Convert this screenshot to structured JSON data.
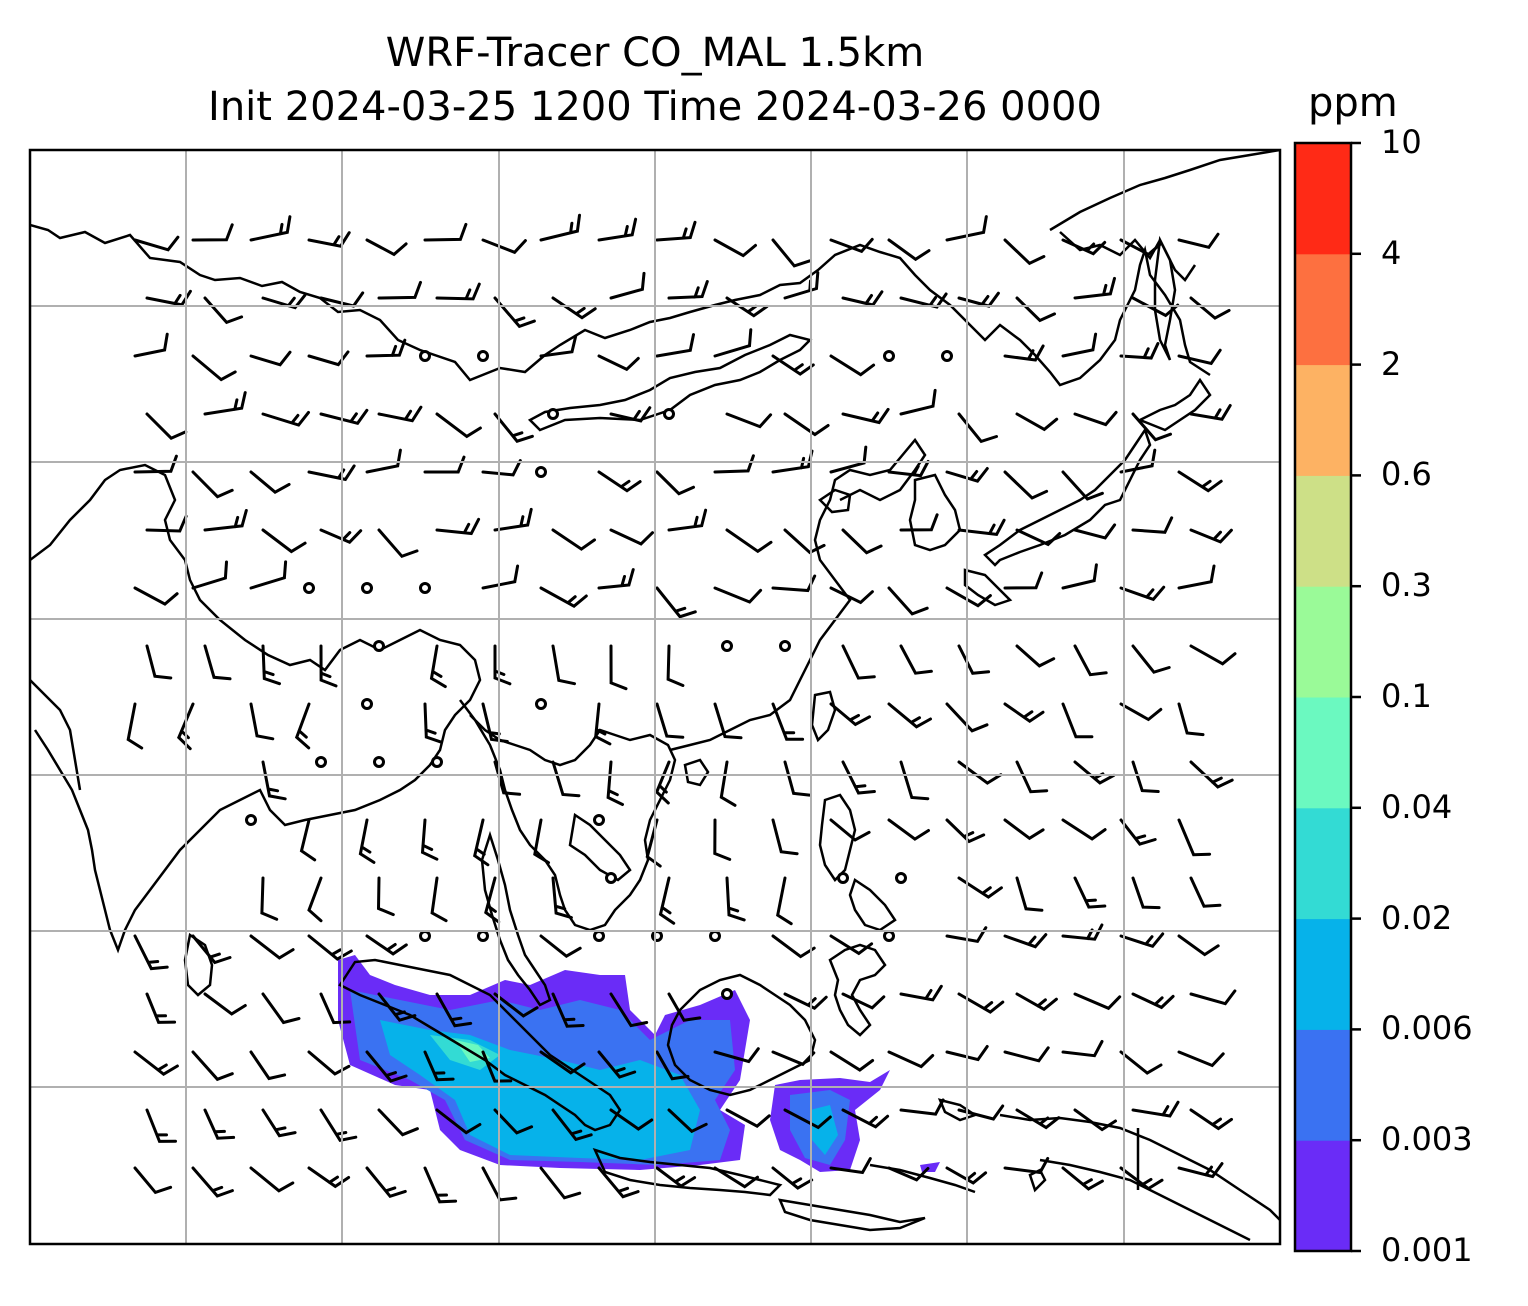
{
  "title": {
    "line1": "WRF-Tracer CO_MAL 1.5km",
    "line2": "Init 2024-03-25 1200 Time 2024-03-26 0000"
  },
  "colorbar": {
    "unit": "ppm",
    "ticks": [
      "0.001",
      "0.003",
      "0.006",
      "0.02",
      "0.04",
      "0.1",
      "0.3",
      "0.6",
      "2",
      "4",
      "10"
    ],
    "colors": [
      "#6a2cf7",
      "#3a72f2",
      "#06b2ea",
      "#33dbd4",
      "#6bf9c0",
      "#9afa98",
      "#cde087",
      "#fdb263",
      "#fd7040",
      "#ff2a16"
    ]
  },
  "map": {
    "coastline_color": "#000000",
    "grid_color": "#b0b0b0",
    "tracer_colors": {
      "lowest": "#6a2cf7",
      "low": "#3a72f2",
      "mid": "#06b2ea",
      "midhigh": "#33dbd4",
      "high": "#6bf9c0"
    },
    "wind_barbs": "black wind barbs with calm-wind circles"
  }
}
